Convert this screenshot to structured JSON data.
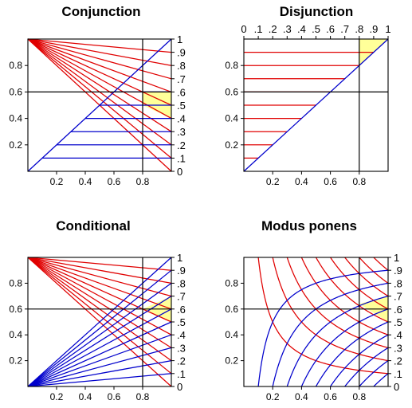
{
  "chart_data": [
    {
      "type": "line",
      "title": "Conjunction",
      "panel": "conjunction",
      "xlim": [
        0,
        1
      ],
      "ylim": [
        0,
        1
      ],
      "x_ticks": [
        "0.2",
        "0.4",
        "0.6",
        "0.8"
      ],
      "y_ticks": [
        "0.2",
        "0.4",
        "0.6",
        "0.8"
      ],
      "right_ticks": [
        "0",
        ".1",
        ".2",
        ".3",
        ".4",
        ".5",
        ".6",
        ".7",
        ".8",
        ".9",
        "1"
      ],
      "reference_lines": {
        "x": 0.8,
        "y": 0.6
      },
      "shaded_region": "between red line 0.4 and blue line 0.6 for x ≥ 0.8",
      "shaded_vertices": [
        [
          0.8,
          0.6
        ],
        [
          1.0,
          0.6
        ],
        [
          1.0,
          0.4
        ],
        [
          0.8,
          0.5
        ]
      ],
      "series": [
        {
          "color": "#e00000",
          "description": "red lines from (0,1) to (1,c), c = 0..1 step 0.1",
          "c": [
            0,
            0.1,
            0.2,
            0.3,
            0.4,
            0.5,
            0.6,
            0.7,
            0.8,
            0.9
          ]
        },
        {
          "color": "#0000cc",
          "description": "diagonal y = x with horizontal lines y = c for x ≥ c",
          "c": [
            0.1,
            0.2,
            0.3,
            0.4,
            0.5,
            0.6
          ]
        }
      ]
    },
    {
      "type": "line",
      "title": "Disjunction",
      "panel": "disjunction",
      "xlim": [
        0,
        1
      ],
      "ylim": [
        0,
        1
      ],
      "x_ticks": [
        "0.2",
        "0.4",
        "0.6",
        "0.8"
      ],
      "y_ticks": [
        "0.2",
        "0.4",
        "0.6",
        "0.8"
      ],
      "top_ticks": [
        "0",
        ".1",
        ".2",
        ".3",
        ".4",
        ".5",
        ".6",
        ".7",
        ".8",
        ".9",
        "1"
      ],
      "reference_lines": {
        "x": 0.8,
        "y": 0.6
      },
      "shaded_vertices": [
        [
          0.8,
          0.8
        ],
        [
          1.0,
          1.0
        ],
        [
          0.8,
          1.0
        ]
      ],
      "series": [
        {
          "color": "#e00000",
          "description": "horizontal lines y = c from x = 0 to x = c",
          "c": [
            0.1,
            0.2,
            0.3,
            0.4,
            0.5,
            0.6,
            0.7,
            0.8,
            0.9
          ]
        },
        {
          "color": "#0000cc",
          "description": "diagonal y = x"
        }
      ]
    },
    {
      "type": "line",
      "title": "Conditional",
      "panel": "conditional",
      "xlim": [
        0,
        1
      ],
      "ylim": [
        0,
        1
      ],
      "x_ticks": [
        "0.2",
        "0.4",
        "0.6",
        "0.8"
      ],
      "y_ticks": [
        "0.2",
        "0.4",
        "0.6",
        "0.8"
      ],
      "right_ticks": [
        "0",
        ".1",
        ".2",
        ".3",
        ".4",
        ".5",
        ".6",
        ".7",
        ".8",
        ".9",
        "1"
      ],
      "reference_lines": {
        "x": 0.8,
        "y": 0.6
      },
      "shaded_vertices": [
        [
          0.8,
          0.6
        ],
        [
          1.0,
          0.7
        ],
        [
          1.0,
          0.5
        ]
      ],
      "series": [
        {
          "color": "#e00000",
          "description": "lines from (0,1) to (1,c)",
          "c": [
            0,
            0.1,
            0.2,
            0.3,
            0.4,
            0.5,
            0.6,
            0.7,
            0.8,
            0.9
          ]
        },
        {
          "color": "#0000cc",
          "description": "lines from (0,0) to (1,c)",
          "c": [
            0.1,
            0.2,
            0.3,
            0.4,
            0.5,
            0.6,
            0.7,
            0.8,
            0.9,
            1
          ]
        }
      ]
    },
    {
      "type": "line",
      "title": "Modus ponens",
      "panel": "modus_ponens",
      "xlim": [
        0,
        1
      ],
      "ylim": [
        0,
        1
      ],
      "x_ticks": [
        "0.2",
        "0.4",
        "0.6",
        "0.8"
      ],
      "y_ticks": [
        "0.2",
        "0.4",
        "0.6",
        "0.8"
      ],
      "right_ticks": [
        "0",
        ".1",
        ".2",
        ".3",
        ".4",
        ".5",
        ".6",
        ".7",
        ".8",
        ".9",
        "1"
      ],
      "reference_lines": {
        "x": 0.8,
        "y": 0.6
      },
      "shaded_vertices": [
        [
          0.8,
          0.64
        ],
        [
          1.0,
          0.7
        ],
        [
          1.0,
          0.5
        ]
      ],
      "series": [
        {
          "color": "#e00000",
          "description": "curves y = c / x",
          "c": [
            0.1,
            0.2,
            0.3,
            0.4,
            0.5,
            0.6,
            0.7,
            0.8,
            0.9
          ]
        },
        {
          "color": "#0000cc",
          "description": "curves y = (x - 1 + c) / x",
          "c": [
            0.1,
            0.2,
            0.3,
            0.4,
            0.5,
            0.6,
            0.7,
            0.8,
            0.9
          ]
        }
      ]
    }
  ]
}
